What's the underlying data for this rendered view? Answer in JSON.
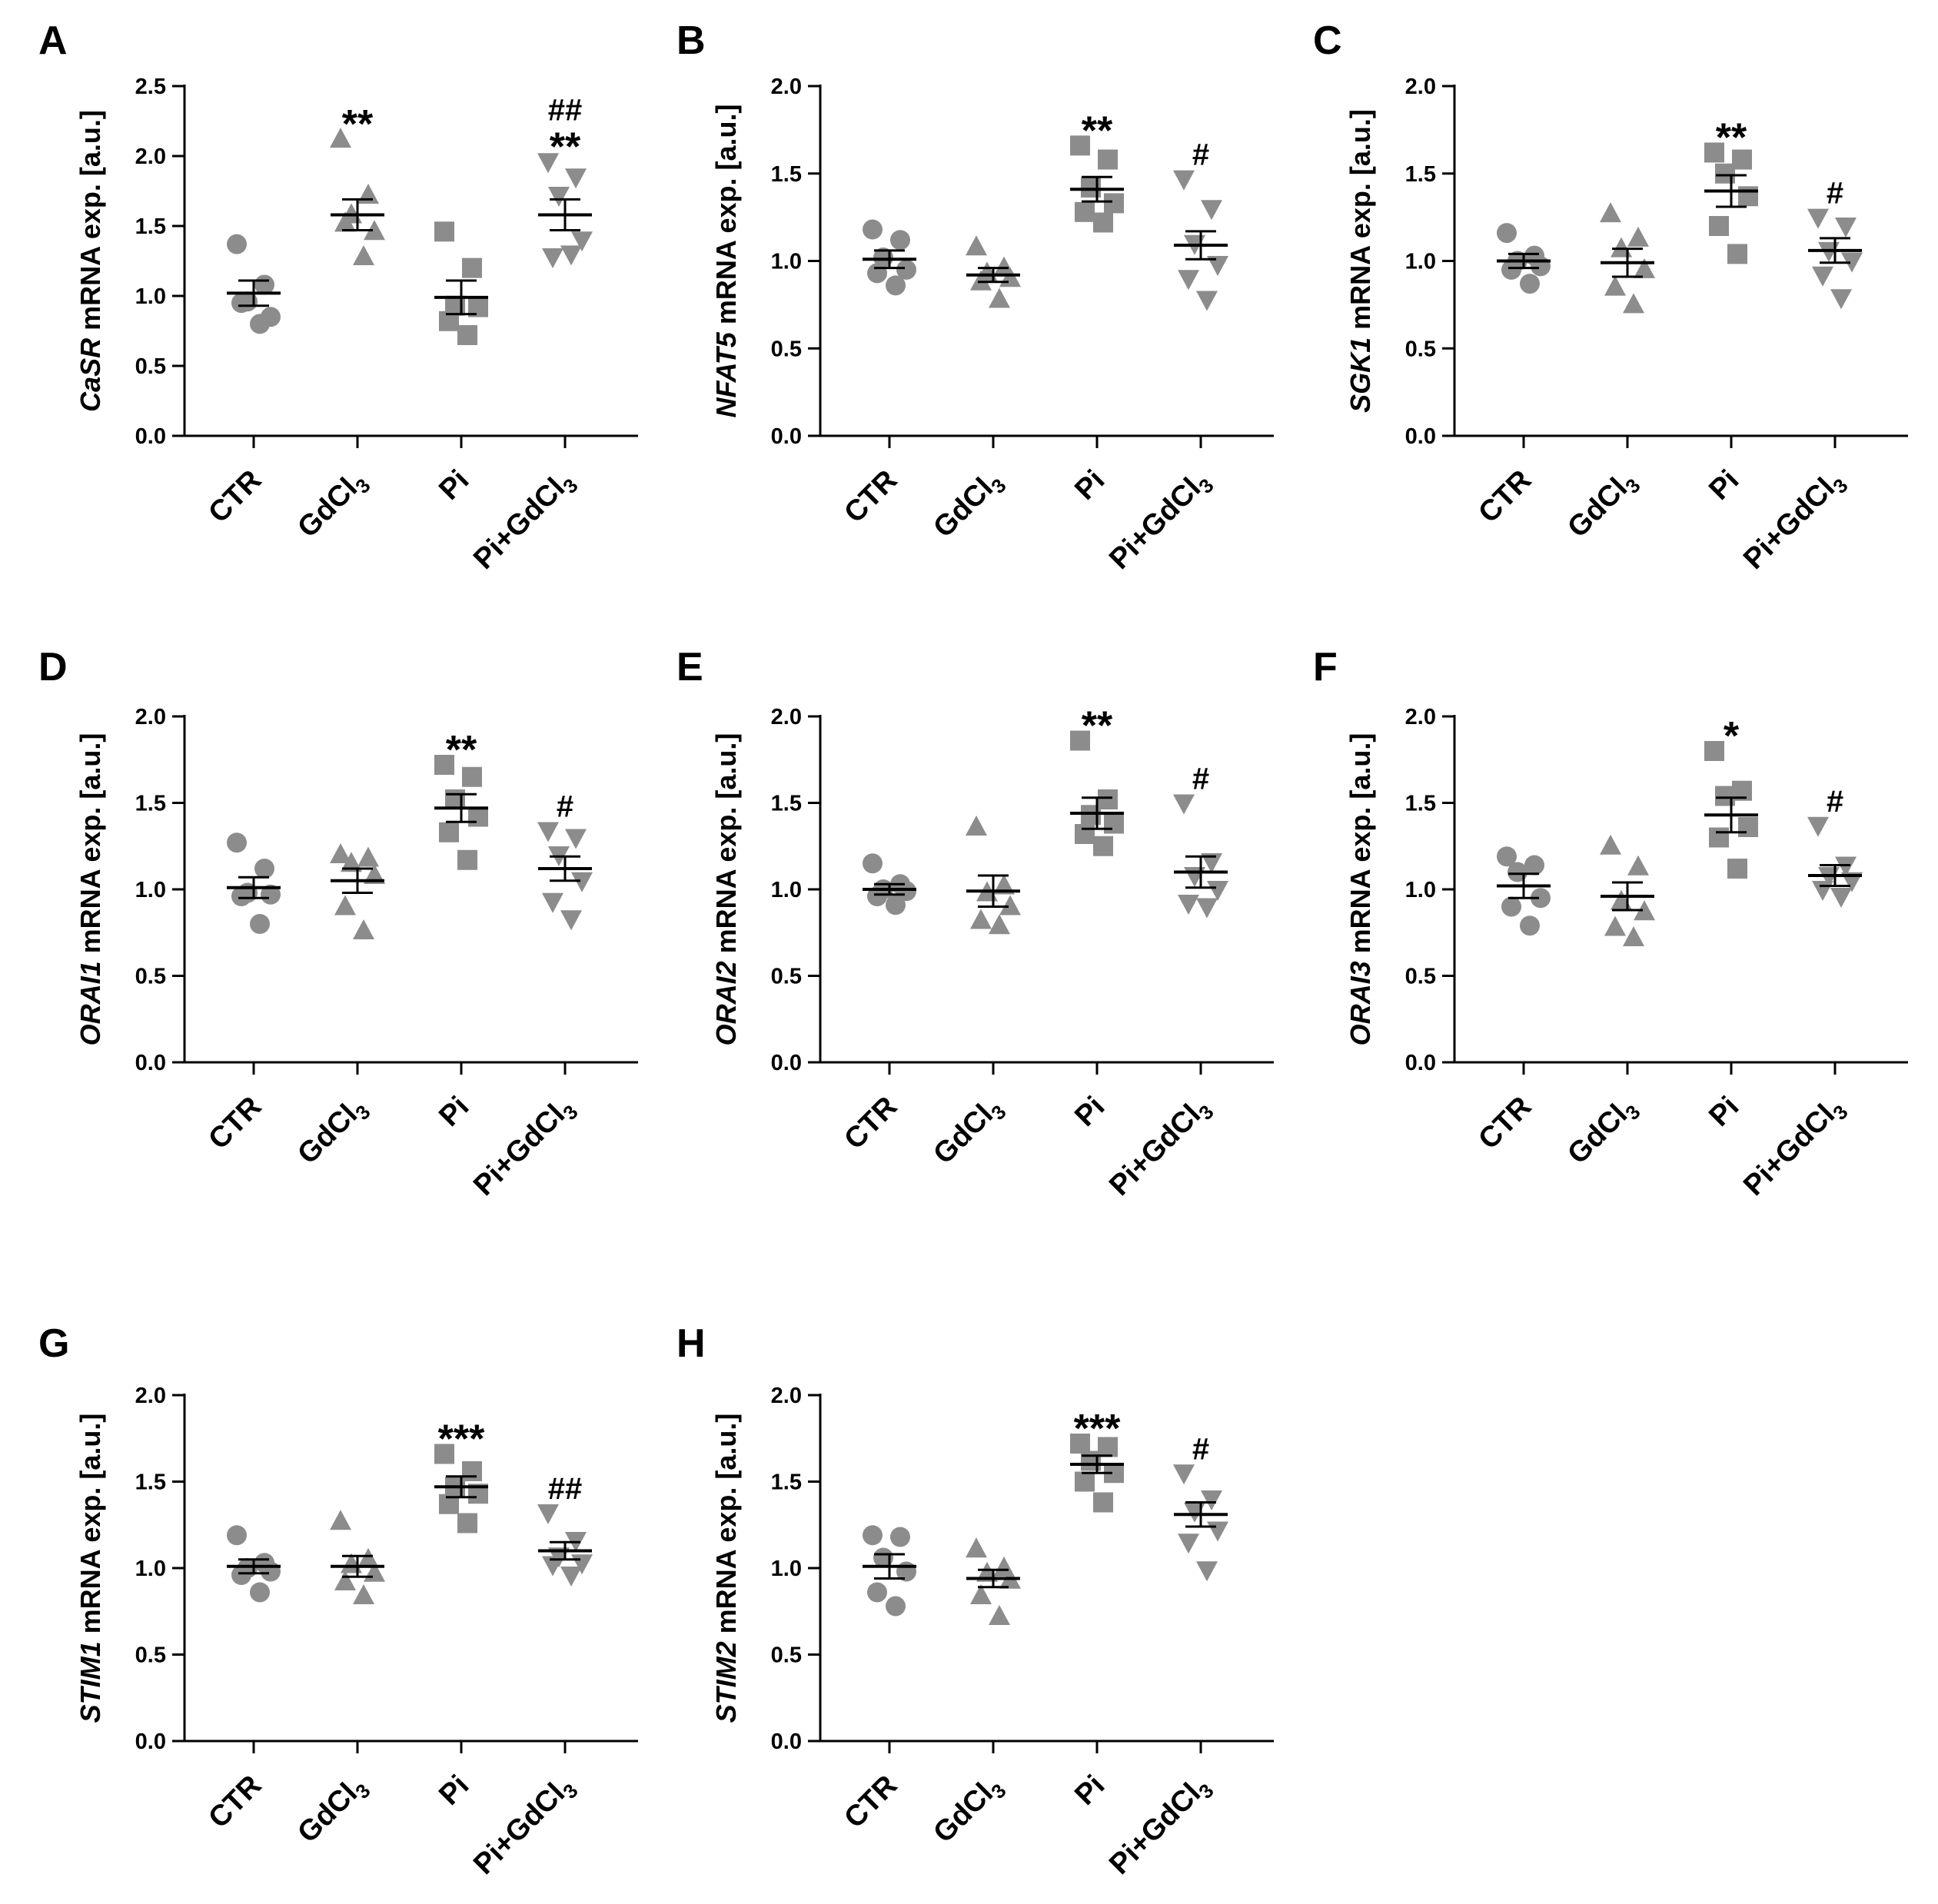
{
  "figure": {
    "group_colors": {
      "marker": "#8c8c8c",
      "line": "#000000"
    },
    "marker_shapes": [
      "circle",
      "triangle-up",
      "square",
      "triangle-down"
    ]
  },
  "chart_data": [
    {
      "type": "scatter",
      "panel": "A",
      "ylabel": {
        "gene": "CaSR",
        "rest": " mRNA exp. [a.u.]"
      },
      "categories": [
        "CTR",
        "GdCl3",
        "Pi",
        "Pi+GdCl3"
      ],
      "category_labels": [
        {
          "main": "CTR",
          "sub": ""
        },
        {
          "main": "GdCl",
          "sub": "3"
        },
        {
          "main": "Pi",
          "sub": ""
        },
        {
          "main": "Pi+GdCl",
          "sub": "3"
        }
      ],
      "ylim": [
        0,
        2.5
      ],
      "yticks": [
        "0.0",
        "0.5",
        "1.0",
        "1.5",
        "2.0",
        "2.5"
      ],
      "groups": [
        {
          "name": "CTR",
          "points": [
            1.37,
            1.08,
            0.96,
            0.85,
            0.95,
            0.8
          ],
          "mean": 1.02,
          "sem": 0.09,
          "sig": []
        },
        {
          "name": "GdCl3",
          "points": [
            2.12,
            1.72,
            1.58,
            1.46,
            1.52,
            1.28
          ],
          "mean": 1.58,
          "sem": 0.11,
          "sig": [
            "**"
          ]
        },
        {
          "name": "Pi",
          "points": [
            1.46,
            1.2,
            0.93,
            0.92,
            0.82,
            0.72
          ],
          "mean": 0.99,
          "sem": 0.12,
          "sig": []
        },
        {
          "name": "Pi+GdCl3",
          "points": [
            1.96,
            1.85,
            1.72,
            1.4,
            1.28,
            1.3
          ],
          "mean": 1.58,
          "sem": 0.11,
          "sig": [
            "##",
            "**"
          ]
        }
      ]
    },
    {
      "type": "scatter",
      "panel": "B",
      "ylabel": {
        "gene": "NFAT5",
        "rest": " mRNA exp. [a.u.]"
      },
      "categories": [
        "CTR",
        "GdCl3",
        "Pi",
        "Pi+GdCl3"
      ],
      "category_labels": [
        {
          "main": "CTR",
          "sub": ""
        },
        {
          "main": "GdCl",
          "sub": "3"
        },
        {
          "main": "Pi",
          "sub": ""
        },
        {
          "main": "Pi+GdCl",
          "sub": "3"
        }
      ],
      "ylim": [
        0,
        2.0
      ],
      "yticks": [
        "0.0",
        "0.5",
        "1.0",
        "1.5",
        "2.0"
      ],
      "groups": [
        {
          "name": "CTR",
          "points": [
            1.18,
            1.12,
            1.02,
            0.95,
            0.93,
            0.86
          ],
          "mean": 1.01,
          "sem": 0.05,
          "sig": []
        },
        {
          "name": "GdCl3",
          "points": [
            1.08,
            0.96,
            0.93,
            0.9,
            0.88,
            0.78
          ],
          "mean": 0.92,
          "sem": 0.04,
          "sig": []
        },
        {
          "name": "Pi",
          "points": [
            1.66,
            1.58,
            1.42,
            1.33,
            1.28,
            1.22
          ],
          "mean": 1.41,
          "sem": 0.07,
          "sig": [
            "**"
          ]
        },
        {
          "name": "Pi+GdCl3",
          "points": [
            1.47,
            1.3,
            1.1,
            0.98,
            0.9,
            0.78
          ],
          "mean": 1.09,
          "sem": 0.08,
          "sig": [
            "#"
          ]
        }
      ]
    },
    {
      "type": "scatter",
      "panel": "C",
      "ylabel": {
        "gene": "SGK1",
        "rest": " mRNA exp. [a.u.]"
      },
      "categories": [
        "CTR",
        "GdCl3",
        "Pi",
        "Pi+GdCl3"
      ],
      "category_labels": [
        {
          "main": "CTR",
          "sub": ""
        },
        {
          "main": "GdCl",
          "sub": "3"
        },
        {
          "main": "Pi",
          "sub": ""
        },
        {
          "main": "Pi+GdCl",
          "sub": "3"
        }
      ],
      "ylim": [
        0,
        2.0
      ],
      "yticks": [
        "0.0",
        "0.5",
        "1.0",
        "1.5",
        "2.0"
      ],
      "groups": [
        {
          "name": "CTR",
          "points": [
            1.16,
            1.03,
            1.0,
            0.97,
            0.95,
            0.87
          ],
          "mean": 1.0,
          "sem": 0.04,
          "sig": []
        },
        {
          "name": "GdCl3",
          "points": [
            1.27,
            1.13,
            1.07,
            0.95,
            0.85,
            0.75
          ],
          "mean": 0.99,
          "sem": 0.08,
          "sig": []
        },
        {
          "name": "Pi",
          "points": [
            1.62,
            1.58,
            1.5,
            1.37,
            1.2,
            1.04
          ],
          "mean": 1.4,
          "sem": 0.09,
          "sig": [
            "**"
          ]
        },
        {
          "name": "Pi+GdCl3",
          "points": [
            1.25,
            1.2,
            1.06,
            1.0,
            0.92,
            0.79
          ],
          "mean": 1.06,
          "sem": 0.07,
          "sig": [
            "#"
          ]
        }
      ]
    },
    {
      "type": "scatter",
      "panel": "D",
      "ylabel": {
        "gene": "ORAI1",
        "rest": " mRNA exp. [a.u.]"
      },
      "categories": [
        "CTR",
        "GdCl3",
        "Pi",
        "Pi+GdCl3"
      ],
      "category_labels": [
        {
          "main": "CTR",
          "sub": ""
        },
        {
          "main": "GdCl",
          "sub": "3"
        },
        {
          "main": "Pi",
          "sub": ""
        },
        {
          "main": "Pi+GdCl",
          "sub": "3"
        }
      ],
      "ylim": [
        0,
        2.0
      ],
      "yticks": [
        "0.0",
        "0.5",
        "1.0",
        "1.5",
        "2.0"
      ],
      "groups": [
        {
          "name": "CTR",
          "points": [
            1.27,
            1.12,
            0.98,
            0.97,
            0.96,
            0.8
          ],
          "mean": 1.01,
          "sem": 0.06,
          "sig": []
        },
        {
          "name": "GdCl3",
          "points": [
            1.2,
            1.18,
            1.15,
            1.08,
            0.9,
            0.76
          ],
          "mean": 1.05,
          "sem": 0.07,
          "sig": []
        },
        {
          "name": "Pi",
          "points": [
            1.72,
            1.65,
            1.52,
            1.42,
            1.33,
            1.17
          ],
          "mean": 1.47,
          "sem": 0.08,
          "sig": [
            "**"
          ]
        },
        {
          "name": "Pi+GdCl3",
          "points": [
            1.34,
            1.3,
            1.2,
            1.05,
            0.93,
            0.83
          ],
          "mean": 1.12,
          "sem": 0.07,
          "sig": [
            "#"
          ]
        }
      ]
    },
    {
      "type": "scatter",
      "panel": "E",
      "ylabel": {
        "gene": "ORAI2",
        "rest": " mRNA exp. [a.u.]"
      },
      "categories": [
        "CTR",
        "GdCl3",
        "Pi",
        "Pi+GdCl3"
      ],
      "category_labels": [
        {
          "main": "CTR",
          "sub": ""
        },
        {
          "main": "GdCl",
          "sub": "3"
        },
        {
          "main": "Pi",
          "sub": ""
        },
        {
          "main": "Pi+GdCl",
          "sub": "3"
        }
      ],
      "ylim": [
        0,
        2.0
      ],
      "yticks": [
        "0.0",
        "0.5",
        "1.0",
        "1.5",
        "2.0"
      ],
      "groups": [
        {
          "name": "CTR",
          "points": [
            1.15,
            1.03,
            1.0,
            0.99,
            0.96,
            0.91
          ],
          "mean": 1.0,
          "sem": 0.03,
          "sig": []
        },
        {
          "name": "GdCl3",
          "points": [
            1.36,
            1.02,
            0.98,
            0.9,
            0.82,
            0.79
          ],
          "mean": 0.99,
          "sem": 0.09,
          "sig": []
        },
        {
          "name": "Pi",
          "points": [
            1.86,
            1.52,
            1.43,
            1.38,
            1.32,
            1.25
          ],
          "mean": 1.44,
          "sem": 0.09,
          "sig": [
            "**"
          ]
        },
        {
          "name": "Pi+GdCl3",
          "points": [
            1.5,
            1.16,
            1.08,
            1.0,
            0.92,
            0.9
          ],
          "mean": 1.1,
          "sem": 0.09,
          "sig": [
            "#"
          ]
        }
      ]
    },
    {
      "type": "scatter",
      "panel": "F",
      "ylabel": {
        "gene": "ORAI3",
        "rest": " mRNA exp. [a.u.]"
      },
      "categories": [
        "CTR",
        "GdCl3",
        "Pi",
        "Pi+GdCl3"
      ],
      "category_labels": [
        {
          "main": "CTR",
          "sub": ""
        },
        {
          "main": "GdCl",
          "sub": "3"
        },
        {
          "main": "Pi",
          "sub": ""
        },
        {
          "main": "Pi+GdCl",
          "sub": "3"
        }
      ],
      "ylim": [
        0,
        2.0
      ],
      "yticks": [
        "0.0",
        "0.5",
        "1.0",
        "1.5",
        "2.0"
      ],
      "groups": [
        {
          "name": "CTR",
          "points": [
            1.19,
            1.14,
            1.1,
            0.95,
            0.9,
            0.79
          ],
          "mean": 1.02,
          "sem": 0.07,
          "sig": []
        },
        {
          "name": "GdCl3",
          "points": [
            1.25,
            1.13,
            0.93,
            0.87,
            0.78,
            0.72
          ],
          "mean": 0.96,
          "sem": 0.08,
          "sig": []
        },
        {
          "name": "Pi",
          "points": [
            1.8,
            1.57,
            1.54,
            1.36,
            1.3,
            1.12
          ],
          "mean": 1.43,
          "sem": 0.1,
          "sig": [
            "*"
          ]
        },
        {
          "name": "Pi+GdCl3",
          "points": [
            1.37,
            1.14,
            1.08,
            1.05,
            1.0,
            0.96
          ],
          "mean": 1.08,
          "sem": 0.06,
          "sig": [
            "#"
          ]
        }
      ]
    },
    {
      "type": "scatter",
      "panel": "G",
      "ylabel": {
        "gene": "STIM1",
        "rest": " mRNA exp. [a.u.]"
      },
      "categories": [
        "CTR",
        "GdCl3",
        "Pi",
        "Pi+GdCl3"
      ],
      "category_labels": [
        {
          "main": "CTR",
          "sub": ""
        },
        {
          "main": "GdCl",
          "sub": "3"
        },
        {
          "main": "Pi",
          "sub": ""
        },
        {
          "main": "Pi+GdCl",
          "sub": "3"
        }
      ],
      "ylim": [
        0,
        2.0
      ],
      "yticks": [
        "0.0",
        "0.5",
        "1.0",
        "1.5",
        "2.0"
      ],
      "groups": [
        {
          "name": "CTR",
          "points": [
            1.19,
            1.03,
            1.0,
            0.98,
            0.96,
            0.86
          ],
          "mean": 1.01,
          "sem": 0.04,
          "sig": []
        },
        {
          "name": "GdCl3",
          "points": [
            1.27,
            1.05,
            1.02,
            0.97,
            0.92,
            0.84
          ],
          "mean": 1.01,
          "sem": 0.06,
          "sig": []
        },
        {
          "name": "Pi",
          "points": [
            1.66,
            1.56,
            1.47,
            1.43,
            1.37,
            1.26
          ],
          "mean": 1.47,
          "sem": 0.06,
          "sig": [
            "***"
          ]
        },
        {
          "name": "Pi+GdCl3",
          "points": [
            1.32,
            1.16,
            1.07,
            1.03,
            1.02,
            0.96
          ],
          "mean": 1.1,
          "sem": 0.05,
          "sig": [
            "##"
          ]
        }
      ]
    },
    {
      "type": "scatter",
      "panel": "H",
      "ylabel": {
        "gene": "STIM2",
        "rest": " mRNA exp. [a.u.]"
      },
      "categories": [
        "CTR",
        "GdCl3",
        "Pi",
        "Pi+GdCl3"
      ],
      "category_labels": [
        {
          "main": "CTR",
          "sub": ""
        },
        {
          "main": "GdCl",
          "sub": "3"
        },
        {
          "main": "Pi",
          "sub": ""
        },
        {
          "main": "Pi+GdCl",
          "sub": "3"
        }
      ],
      "ylim": [
        0,
        2.0
      ],
      "yticks": [
        "0.0",
        "0.5",
        "1.0",
        "1.5",
        "2.0"
      ],
      "groups": [
        {
          "name": "CTR",
          "points": [
            1.19,
            1.18,
            1.06,
            0.98,
            0.86,
            0.78
          ],
          "mean": 1.01,
          "sem": 0.07,
          "sig": []
        },
        {
          "name": "GdCl3",
          "points": [
            1.11,
            1.0,
            0.97,
            0.93,
            0.84,
            0.72
          ],
          "mean": 0.94,
          "sem": 0.05,
          "sig": []
        },
        {
          "name": "Pi",
          "points": [
            1.72,
            1.7,
            1.62,
            1.55,
            1.5,
            1.38
          ],
          "mean": 1.6,
          "sem": 0.05,
          "sig": [
            "***"
          ]
        },
        {
          "name": "Pi+GdCl3",
          "points": [
            1.55,
            1.4,
            1.33,
            1.22,
            1.15,
            0.99
          ],
          "mean": 1.31,
          "sem": 0.07,
          "sig": [
            "#"
          ]
        }
      ]
    }
  ]
}
